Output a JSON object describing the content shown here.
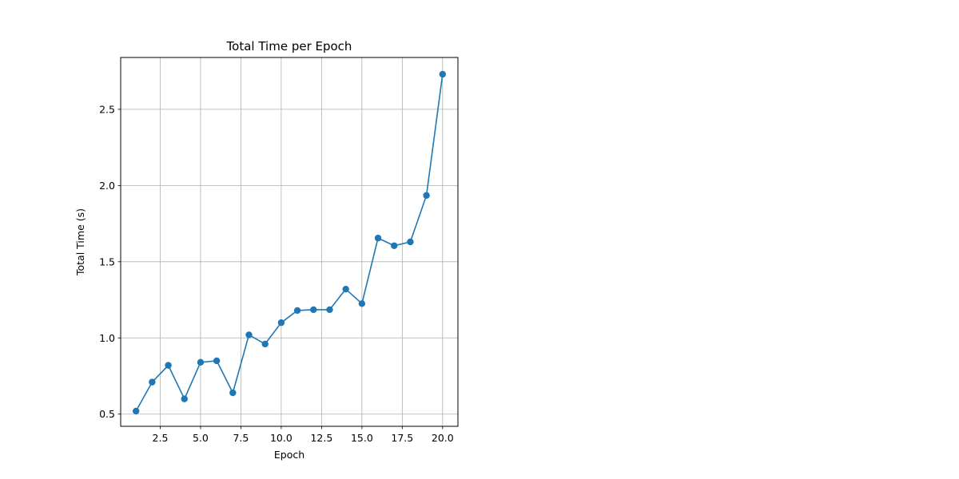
{
  "chart_data": {
    "type": "line",
    "title": "Total Time per Epoch",
    "xlabel": "Epoch",
    "ylabel": "Total Time (s)",
    "xlim": [
      0.05,
      20.95
    ],
    "ylim": [
      0.42,
      2.84
    ],
    "xticks": [
      2.5,
      5.0,
      7.5,
      10.0,
      12.5,
      15.0,
      17.5,
      20.0
    ],
    "xtick_labels": [
      "2.5",
      "5.0",
      "7.5",
      "10.0",
      "12.5",
      "15.0",
      "17.5",
      "20.0"
    ],
    "yticks": [
      0.5,
      1.0,
      1.5,
      2.0,
      2.5
    ],
    "ytick_labels": [
      "0.5",
      "1.0",
      "1.5",
      "2.0",
      "2.5"
    ],
    "grid": true,
    "series": [
      {
        "color": "#1f77b4",
        "marker": "circle",
        "x": [
          1,
          2,
          3,
          4,
          5,
          6,
          7,
          8,
          9,
          10,
          11,
          12,
          13,
          14,
          15,
          16,
          17,
          18,
          19,
          20
        ],
        "y": [
          0.52,
          0.71,
          0.82,
          0.6,
          0.84,
          0.85,
          0.64,
          1.02,
          0.96,
          1.1,
          1.18,
          1.185,
          1.185,
          1.32,
          1.225,
          1.655,
          1.605,
          1.63,
          1.935,
          2.73
        ]
      }
    ]
  }
}
